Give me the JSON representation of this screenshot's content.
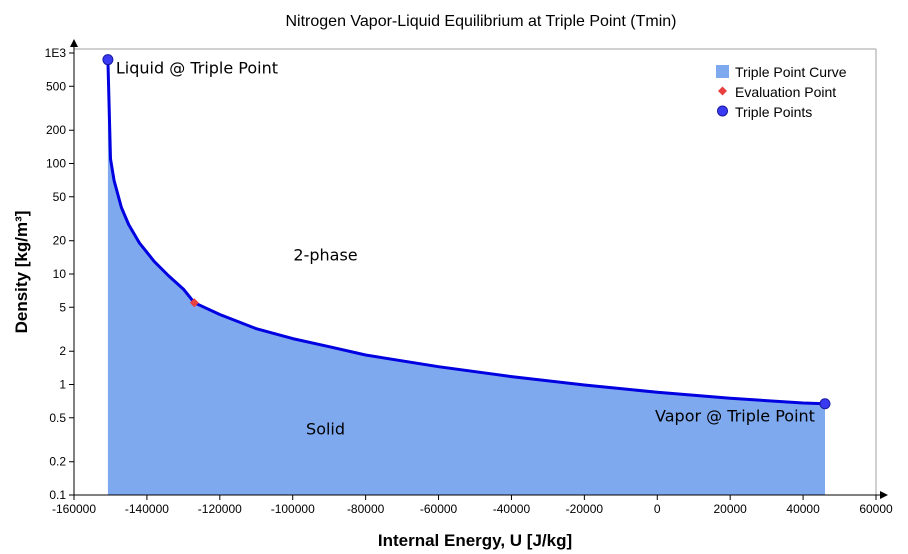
{
  "chart_data": {
    "type": "area",
    "title": "Nitrogen Vapor-Liquid Equilibrium at Triple Point (Tmin)",
    "xlabel": "Internal Energy, U [J/kg]",
    "ylabel": "Density [kg/m³]",
    "xlim": [
      -160000,
      60000
    ],
    "ylim": [
      0.1,
      1000
    ],
    "y_scale": "log",
    "grid": false,
    "legend_position": "top-right",
    "x_ticks": [
      -160000,
      -140000,
      -120000,
      -100000,
      -80000,
      -60000,
      -40000,
      -20000,
      0,
      20000,
      40000,
      60000
    ],
    "x_tick_labels": [
      "-160000",
      "-140000",
      "-120000",
      "-100000",
      "-80000",
      "-60000",
      "-40000",
      "-20000",
      "0",
      "20000",
      "40000",
      "60000"
    ],
    "y_ticks": [
      0.1,
      0.2,
      0.5,
      1,
      2,
      5,
      10,
      20,
      50,
      100,
      200,
      500,
      1000
    ],
    "y_tick_labels": [
      "0.1",
      "0.2",
      "0.5",
      "1",
      "2",
      "5",
      "10",
      "20",
      "50",
      "100",
      "200",
      "500",
      "1E3"
    ],
    "series": [
      {
        "name": "Triple Point Curve",
        "color": "#7ea9ef",
        "line_color": "#0000e0",
        "points": [
          [
            -150700,
            870
          ],
          [
            -150000,
            110
          ],
          [
            -149000,
            70
          ],
          [
            -147000,
            40
          ],
          [
            -145000,
            28
          ],
          [
            -142000,
            19
          ],
          [
            -138000,
            13
          ],
          [
            -134000,
            9.6
          ],
          [
            -130000,
            7.3
          ],
          [
            -127000,
            5.5
          ],
          [
            -120000,
            4.3
          ],
          [
            -110000,
            3.2
          ],
          [
            -100000,
            2.6
          ],
          [
            -90000,
            2.2
          ],
          [
            -80000,
            1.85
          ],
          [
            -60000,
            1.45
          ],
          [
            -40000,
            1.18
          ],
          [
            -20000,
            0.99
          ],
          [
            0,
            0.85
          ],
          [
            20000,
            0.75
          ],
          [
            40000,
            0.68
          ],
          [
            46000,
            0.67
          ]
        ]
      },
      {
        "name": "Evaluation Point",
        "color": "#e84040",
        "points": [
          [
            -127000,
            5.5
          ]
        ]
      },
      {
        "name": "Triple Points",
        "color": "#3a3af2",
        "points": [
          [
            -150700,
            870
          ],
          [
            46000,
            0.67
          ]
        ]
      }
    ],
    "annotations": [
      {
        "text": "Liquid @ Triple Point",
        "x": -150700,
        "y": 870
      },
      {
        "text": "Vapor @ Triple Point",
        "x": 46000,
        "y": 0.67
      },
      {
        "text": "2-phase",
        "x": -91000,
        "y": 15
      },
      {
        "text": "Solid",
        "x": -91000,
        "y": 0.4
      }
    ]
  }
}
